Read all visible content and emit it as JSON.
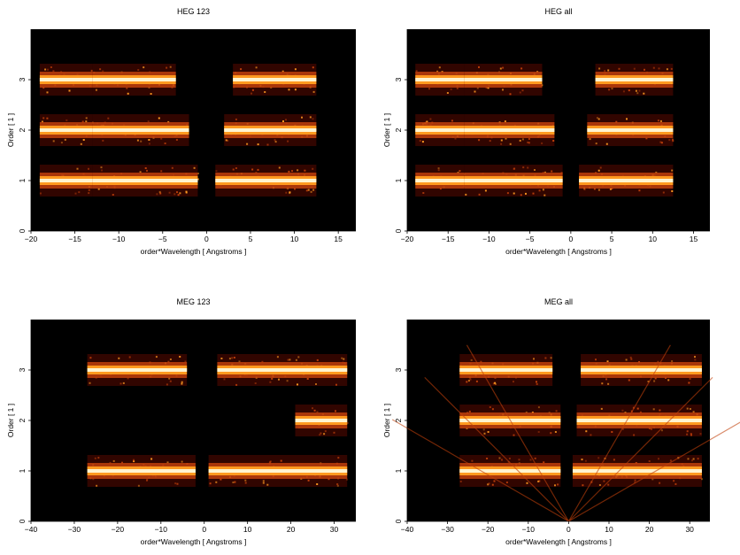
{
  "chart_data": [
    {
      "type": "heatmap",
      "title": "HEG 123",
      "xlabel": "order*Wavelength [ Angstroms ]",
      "ylabel": "Order [ 1 ]",
      "xlim": [
        -20,
        17
      ],
      "ylim": [
        0,
        4
      ],
      "xticks": [
        -20,
        -15,
        -10,
        -5,
        0,
        5,
        10,
        15
      ],
      "yticks": [
        0,
        1,
        2,
        3
      ],
      "bands": [
        {
          "order": 1,
          "segments": [
            [
              -19,
              -13
            ],
            [
              -13,
              -1
            ],
            [
              1,
              12.5
            ]
          ]
        },
        {
          "order": 2,
          "segments": [
            [
              -19,
              -13
            ],
            [
              -13,
              -2
            ],
            [
              2,
              12.5
            ]
          ]
        },
        {
          "order": 3,
          "segments": [
            [
              -19,
              -13
            ],
            [
              -13,
              -3.5
            ],
            [
              3,
              12.5
            ]
          ]
        }
      ]
    },
    {
      "type": "heatmap",
      "title": "HEG all",
      "xlabel": "order*Wavelength [ Angstroms ]",
      "ylabel": "Order [ 1 ]",
      "xlim": [
        -20,
        17
      ],
      "ylim": [
        0,
        4
      ],
      "xticks": [
        -20,
        -15,
        -10,
        -5,
        0,
        5,
        10,
        15
      ],
      "yticks": [
        0,
        1,
        2,
        3
      ],
      "bands": [
        {
          "order": 1,
          "segments": [
            [
              -19,
              -13
            ],
            [
              -13,
              -1
            ],
            [
              1,
              12.5
            ]
          ]
        },
        {
          "order": 2,
          "segments": [
            [
              -19,
              -13
            ],
            [
              -13,
              -2
            ],
            [
              2,
              12.5
            ]
          ]
        },
        {
          "order": 3,
          "segments": [
            [
              -19,
              -13
            ],
            [
              -13,
              -3.5
            ],
            [
              3,
              12.5
            ]
          ]
        }
      ]
    },
    {
      "type": "heatmap",
      "title": "MEG 123",
      "xlabel": "order*Wavelength [ Angstroms ]",
      "ylabel": "Order [ 1 ]",
      "xlim": [
        -40,
        35
      ],
      "ylim": [
        0,
        4
      ],
      "xticks": [
        -40,
        -30,
        -20,
        -10,
        0,
        10,
        20,
        30
      ],
      "yticks": [
        0,
        1,
        2,
        3
      ],
      "bands": [
        {
          "order": 1,
          "segments": [
            [
              -27,
              -2
            ],
            [
              1,
              33
            ]
          ]
        },
        {
          "order": 2,
          "segments": [
            [
              21,
              33
            ]
          ]
        },
        {
          "order": 3,
          "segments": [
            [
              -27,
              -4
            ],
            [
              3,
              33
            ]
          ]
        }
      ]
    },
    {
      "type": "heatmap",
      "title": "MEG all",
      "xlabel": "order*Wavelength [ Angstroms ]",
      "ylabel": "Order [ 1 ]",
      "xlim": [
        -40,
        35
      ],
      "ylim": [
        0,
        4
      ],
      "xticks": [
        -40,
        -30,
        -20,
        -10,
        0,
        10,
        20,
        30
      ],
      "yticks": [
        0,
        1,
        2,
        3
      ],
      "bands": [
        {
          "order": 1,
          "segments": [
            [
              -27,
              -2
            ],
            [
              1,
              33
            ]
          ]
        },
        {
          "order": 2,
          "segments": [
            [
              -27,
              -2
            ],
            [
              2,
              33
            ]
          ]
        },
        {
          "order": 3,
          "segments": [
            [
              -27,
              -4
            ],
            [
              3,
              33
            ]
          ]
        }
      ]
    }
  ],
  "colors": {
    "background": "#000000",
    "dark": "#5a0a00",
    "mid": "#c0400a",
    "bright": "#ff9a20",
    "peak": "#fff4d0"
  }
}
